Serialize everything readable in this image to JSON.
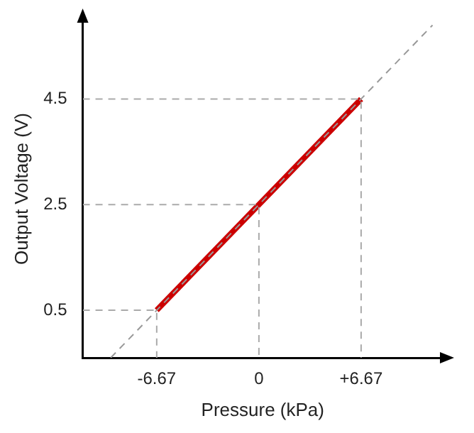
{
  "chart_data": {
    "type": "line",
    "xlabel": "Pressure (kPa)",
    "ylabel": "Output Voltage (V)",
    "xlim": [
      -11.5,
      12
    ],
    "ylim": [
      -0.4,
      6
    ],
    "xticks": [
      -6.67,
      0,
      {
        "value": 6.67,
        "label": "+6.67"
      }
    ],
    "yticks": [
      0.5,
      2.5,
      4.5
    ],
    "grid": false,
    "legend": false,
    "marker": "none",
    "series": [
      {
        "type": "line",
        "color": "#999999",
        "line_style": "dashed",
        "x": [
          -9.67,
          11.33
        ],
        "values": [
          -0.4,
          5.9
        ]
      },
      {
        "type": "line",
        "color": "#aaaaaa",
        "line_style": "dashed",
        "x": [
          -11.5,
          -6.67,
          -6.67
        ],
        "values": [
          0.5,
          0.5,
          -0.4
        ]
      },
      {
        "type": "line",
        "color": "#aaaaaa",
        "line_style": "dashed",
        "x": [
          -11.5,
          0,
          0
        ],
        "values": [
          2.5,
          2.5,
          -0.4
        ]
      },
      {
        "type": "line",
        "color": "#aaaaaa",
        "line_style": "dashed",
        "x": [
          -11.5,
          6.67,
          6.67
        ],
        "values": [
          4.5,
          4.5,
          -0.4
        ]
      },
      {
        "type": "line",
        "color": "#cc0000",
        "line_style": "solid",
        "x": [
          -6.67,
          0,
          6.67
        ],
        "values": [
          0.5,
          2.5,
          4.5
        ]
      }
    ]
  }
}
